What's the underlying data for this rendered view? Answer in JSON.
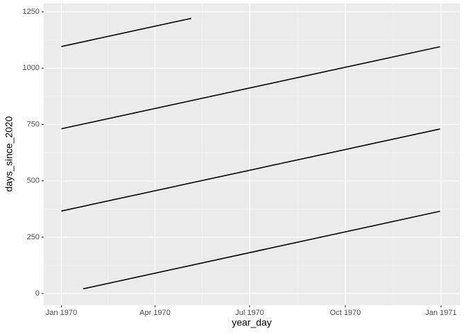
{
  "chart_data": {
    "type": "line",
    "x_label": "year_day",
    "y_label": "days_since_2020",
    "series": [
      {
        "color": "#000000",
        "x": [
          "1970-01-22",
          "1970-12-31"
        ],
        "values": [
          21,
          365
        ]
      },
      {
        "color": "#000000",
        "x": [
          "1970-01-01",
          "1970-12-31"
        ],
        "values": [
          366,
          730
        ]
      },
      {
        "color": "#000000",
        "x": [
          "1970-01-01",
          "1970-12-31"
        ],
        "values": [
          731,
          1095
        ]
      },
      {
        "color": "#000000",
        "x": [
          "1970-01-01",
          "1970-05-06"
        ],
        "values": [
          1096,
          1221
        ]
      }
    ],
    "xlim": [
      "1969-12-15",
      "1971-01-19"
    ],
    "xticks": [
      {
        "value": "1970-01-01",
        "label": "Jan 1970"
      },
      {
        "value": "1970-04-01",
        "label": "Apr 1970"
      },
      {
        "value": "1970-07-01",
        "label": "Jul 1970"
      },
      {
        "value": "1970-10-01",
        "label": "Oct 1970"
      },
      {
        "value": "1971-01-01",
        "label": "Jan 1971"
      }
    ],
    "ylim": [
      -52,
      1287
    ],
    "yticks": [
      0,
      250,
      500,
      750,
      1000,
      1250
    ],
    "grid": true
  }
}
